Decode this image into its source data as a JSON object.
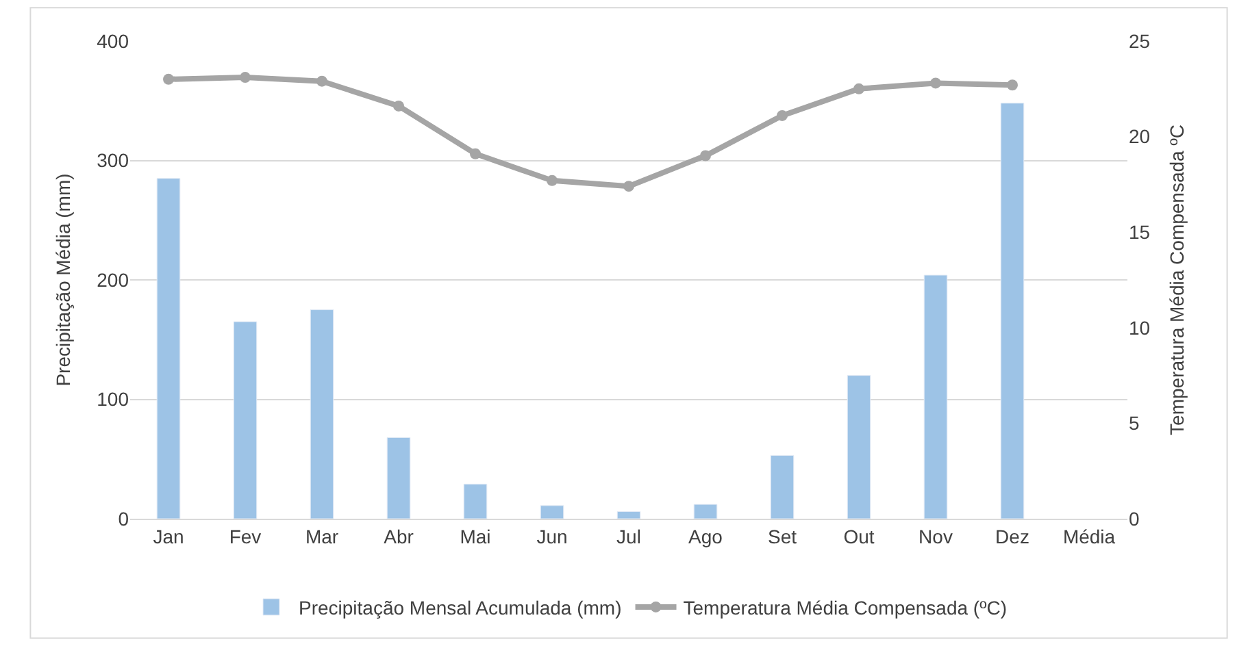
{
  "chart_data": {
    "type": "bar",
    "ylabel": "Precipitação Média (mm)",
    "y2label": "Temperatura Média Compensada ºC",
    "categories": [
      "Jan",
      "Fev",
      "Mar",
      "Abr",
      "Mai",
      "Jun",
      "Jul",
      "Ago",
      "Set",
      "Out",
      "Nov",
      "Dez",
      "Média"
    ],
    "series": [
      {
        "name": "Precipitação Mensal Acumulada (mm)",
        "color": "#9dc3e6",
        "values": [
          285,
          165,
          175,
          68,
          29,
          11,
          6,
          12,
          53,
          120,
          204,
          348,
          null
        ]
      },
      {
        "name": "Temperatura Média Compensada (ºC)",
        "type": "line",
        "axis": "y2",
        "color": "#a5a5a5",
        "marker": "circle",
        "values": [
          23.0,
          23.1,
          22.9,
          21.6,
          19.1,
          17.7,
          17.4,
          19.0,
          21.1,
          22.5,
          22.8,
          22.7,
          null
        ]
      }
    ],
    "ylim": [
      0,
      400
    ],
    "yticks": [
      0,
      100,
      200,
      300,
      400
    ],
    "y2lim": [
      0,
      25
    ],
    "y2ticks": [
      0,
      5,
      10,
      15,
      20,
      25
    ],
    "grid": "y",
    "legend": "bottom"
  }
}
